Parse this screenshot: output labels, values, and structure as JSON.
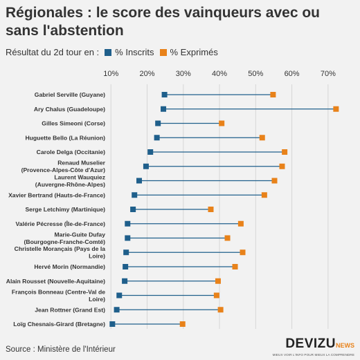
{
  "header": {
    "title": "Régionales : le score des vainqueurs avec ou sans l'abstention"
  },
  "legend": {
    "prefix": "Résultat du 2d tour en :",
    "items": [
      {
        "label": "% Inscrits",
        "color": "#1f5f8b"
      },
      {
        "label": "% Exprimés",
        "color": "#e8821a"
      }
    ]
  },
  "footer": {
    "source": "Source : Ministère de l'Intérieur"
  },
  "brand": {
    "name": "DEVIZU",
    "suffix": "NEWS",
    "tagline": "MIEUX VOIR L'INFO POUR MIEUX LA COMPRENDRE"
  },
  "colors": {
    "inscrits": "#1f5f8b",
    "exprimes": "#e8821a",
    "line": "#1f5f8b",
    "grid": "#d6d6d6",
    "background": "#f2f2f2"
  },
  "chart_data": {
    "type": "dumbbell",
    "title": "Régionales : le score des vainqueurs avec ou sans l'abstention",
    "xlim": [
      9,
      75
    ],
    "ticks": [
      10,
      20,
      30,
      40,
      50,
      60,
      70
    ],
    "tick_labels": [
      "10%",
      "20%",
      "30%",
      "40%",
      "50%",
      "60%",
      "70%"
    ],
    "grid": true,
    "legend_position": "top-left",
    "categories": [
      [
        "Gabriel Serville (Guyane)"
      ],
      [
        "Ary Chalus (Guadeloupe)"
      ],
      [
        "Gilles Simeoni (Corse)"
      ],
      [
        "Huguette Bello (La Réunion)"
      ],
      [
        "Carole Delga (Occitanie)"
      ],
      [
        "Renaud Muselier",
        "(Provence-Alpes-Côte d'Azur)"
      ],
      [
        "Laurent Wauquiez",
        "(Auvergne-Rhône-Alpes)"
      ],
      [
        "Xavier Bertrand (Hauts-de-France)"
      ],
      [
        "Serge Letchimy (Martinique)"
      ],
      [
        "Valérie Pécresse (Île-de-France)"
      ],
      [
        "Marie-Guite Dufay",
        "(Bourgogne-Franche-Comté)"
      ],
      [
        "Christelle Morançais (Pays de la",
        "Loire)"
      ],
      [
        "Hervé Morin (Normandie)"
      ],
      [
        "Alain Rousset (Nouvelle-Aquitaine)"
      ],
      [
        "François Bonneau (Centre-Val de",
        "Loire)"
      ],
      [
        "Jean Rottner (Grand Est)"
      ],
      [
        "Loïg Chesnais-Girard (Bretagne)"
      ]
    ],
    "series": [
      {
        "name": "% Inscrits",
        "values": [
          24.8,
          24.5,
          23.0,
          22.7,
          20.9,
          19.7,
          17.8,
          16.5,
          16.1,
          14.6,
          14.6,
          14.2,
          14.0,
          13.8,
          12.3,
          11.6,
          10.4
        ]
      },
      {
        "name": "% Exprimés",
        "values": [
          54.8,
          72.2,
          40.6,
          51.8,
          58.0,
          57.3,
          55.2,
          52.4,
          37.6,
          45.9,
          42.2,
          46.4,
          44.3,
          39.6,
          39.2,
          40.3,
          29.8
        ]
      }
    ]
  }
}
